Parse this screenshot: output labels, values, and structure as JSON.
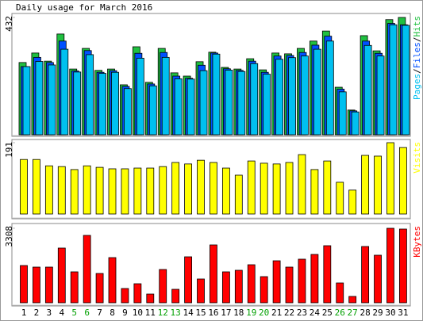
{
  "chart_data": {
    "type": "bar",
    "title": "Daily usage for March 2016",
    "separator": "/",
    "categories": [
      "1",
      "2",
      "3",
      "4",
      "5",
      "6",
      "7",
      "8",
      "9",
      "10",
      "11",
      "12",
      "13",
      "14",
      "15",
      "16",
      "17",
      "18",
      "19",
      "20",
      "21",
      "22",
      "23",
      "24",
      "25",
      "26",
      "27",
      "28",
      "29",
      "30",
      "31"
    ],
    "category_colors": [
      "#000000",
      "#000000",
      "#000000",
      "#000000",
      "#00a000",
      "#00a000",
      "#000000",
      "#000000",
      "#000000",
      "#000000",
      "#000000",
      "#00a000",
      "#00a000",
      "#000000",
      "#000000",
      "#000000",
      "#000000",
      "#000000",
      "#00a000",
      "#00a000",
      "#000000",
      "#000000",
      "#000000",
      "#000000",
      "#000000",
      "#00a000",
      "#00a000",
      "#000000",
      "#000000",
      "#000000",
      "#000000"
    ],
    "panels": [
      {
        "ylim": [
          0,
          432
        ],
        "yticks": [
          432
        ],
        "series": [
          {
            "name": "Hits",
            "color": "#20c040",
            "values": [
              266,
              301,
              271,
              371,
              242,
              318,
              237,
              242,
              184,
              324,
              193,
              318,
              228,
              216,
              269,
              304,
              248,
              242,
              280,
              239,
              301,
              298,
              318,
              345,
              382,
              175,
              91,
              365,
              309,
              424,
              432
            ]
          },
          {
            "name": "Files",
            "color": "#0050ff",
            "values": [
              251,
              285,
              266,
              345,
              235,
              310,
              230,
              236,
              178,
              300,
              187,
              303,
              216,
              208,
              256,
              301,
              243,
              237,
              271,
              230,
              290,
              292,
              303,
              330,
              363,
              168,
              88,
              345,
              300,
              410,
              405
            ]
          },
          {
            "name": "Pages",
            "color": "#00c0f0",
            "values": [
              251,
              270,
              257,
              315,
              231,
              295,
              226,
              230,
              170,
              282,
              180,
              285,
              206,
              205,
              236,
              297,
              238,
              233,
              262,
              223,
              278,
              284,
              290,
              315,
              345,
              158,
              84,
              329,
              290,
              405,
              403
            ]
          }
        ]
      },
      {
        "ylim": [
          0,
          191
        ],
        "yticks": [
          191
        ],
        "series": [
          {
            "name": "Visits",
            "color": "#ffff00",
            "values": [
              146,
              146,
              129,
              127,
              119,
              129,
              125,
              121,
              121,
              123,
              123,
              127,
              138,
              134,
              144,
              138,
              123,
              104,
              142,
              136,
              134,
              138,
              159,
              119,
              142,
              85,
              64,
              157,
              155,
              191,
              178
            ]
          }
        ]
      },
      {
        "ylim": [
          0,
          3308
        ],
        "yticks": [
          3308
        ],
        "series": [
          {
            "name": "KBytes",
            "color": "#ff0000",
            "values": [
              1654,
              1584,
              1584,
              2429,
              1373,
              2992,
              1302,
              2006,
              634,
              845,
              387,
              1478,
              598,
              2041,
              1056,
              2569,
              1373,
              1443,
              1689,
              1161,
              1865,
              1584,
              1936,
              2147,
              2534,
              880,
              282,
              2499,
              2112,
              3308,
              3273
            ]
          }
        ]
      }
    ]
  }
}
